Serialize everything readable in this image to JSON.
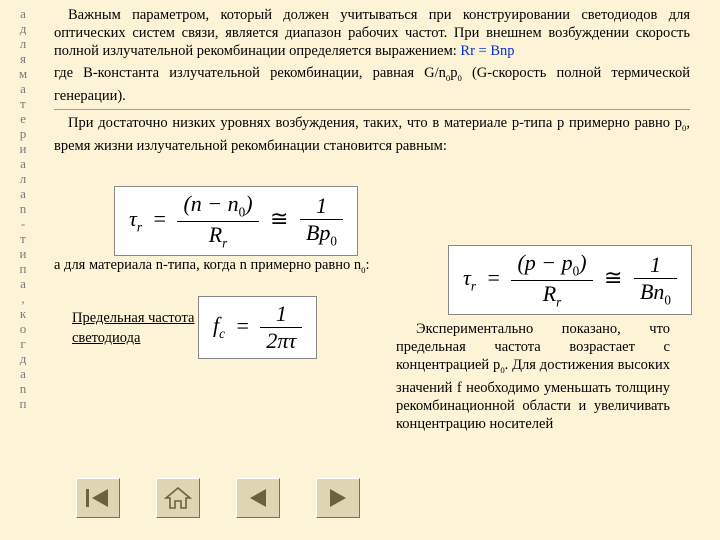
{
  "colors": {
    "background": "#fdf4d7",
    "text": "#000000",
    "formula_highlight": "#0033cc",
    "side_letters": "#7a7a7a",
    "button_face": "#ded5b2",
    "button_icon": "#6b613a",
    "rule": "#b0a070"
  },
  "typography": {
    "body_family": "Times New Roman",
    "body_size_pt": 11,
    "equation_size_pt": 16
  },
  "side_letters": "адляматериалаn-типа,когдаnп",
  "paragraphs": {
    "p1": "Важным параметром, который должен учитываться при конструировании светодиодов для оптических систем связи, является диапазон рабочих частот. При внешнем возбуждении скорость полной излучательной рекомбинации определяется выражением: ",
    "p1_formula": "Rr = Bnp",
    "p2_a": "где B-константа излучательной рекомбинации, равная G/n",
    "p2_b": "p",
    "p2_c": " (G-скорость полной термической генерации).",
    "p3": "При достаточно низких уровнях возбуждения, таких, что в материале p-типа p примерно равно p0, время жизни излучательной рекомбинации становится равным:",
    "n_line_a": "а для материала n-типа, когда n примерно равно n",
    "n_line_b": ":",
    "freq_label_a": "Предельная частота",
    "freq_label_b": "светодиода",
    "exp": "Экспериментально показано, что предельная частота возрастает с концентрацией p0. Для достижения высоких значений f необходимо уменьшать толщину рекомбинационной области и увеличивать концентрацию носителей"
  },
  "equations": {
    "eq1": {
      "lhs": "τ",
      "lhs_sub": "r",
      "num_a": "(n − n",
      "num_b": ")",
      "den": "R",
      "den_sub": "r",
      "rhs_num": "1",
      "rhs_den": "Bp",
      "rhs_den_sub": "0"
    },
    "eq2": {
      "lhs": "τ",
      "lhs_sub": "r",
      "num_a": "(p − p",
      "num_b": ")",
      "den": "R",
      "den_sub": "r",
      "rhs_num": "1",
      "rhs_den": "Bn",
      "rhs_den_sub": "0"
    },
    "eq3": {
      "lhs": "f",
      "lhs_sub": "c",
      "num": "1",
      "den": "2πτ"
    }
  },
  "nav": {
    "buttons": [
      "nav-first",
      "nav-home",
      "nav-prev",
      "nav-next"
    ]
  }
}
